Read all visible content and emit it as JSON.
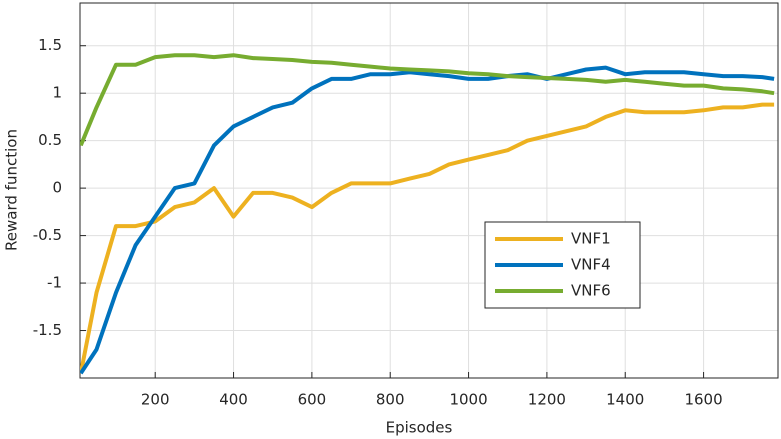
{
  "chart_data": {
    "type": "line",
    "xlabel": "Episodes",
    "ylabel": "Reward function",
    "x": [
      10,
      50,
      100,
      150,
      200,
      250,
      300,
      350,
      400,
      450,
      500,
      550,
      600,
      650,
      700,
      750,
      800,
      850,
      900,
      950,
      1000,
      1050,
      1100,
      1150,
      1200,
      1250,
      1300,
      1350,
      1400,
      1450,
      1500,
      1550,
      1600,
      1650,
      1700,
      1750,
      1780
    ],
    "series": [
      {
        "name": "VNF1",
        "color": "#edb120",
        "values": [
          -1.95,
          -1.1,
          -0.4,
          -0.4,
          -0.35,
          -0.2,
          -0.15,
          0.0,
          -0.3,
          -0.05,
          -0.05,
          -0.1,
          -0.2,
          -0.05,
          0.05,
          0.05,
          0.05,
          0.1,
          0.15,
          0.25,
          0.3,
          0.35,
          0.4,
          0.5,
          0.55,
          0.6,
          0.65,
          0.75,
          0.82,
          0.8,
          0.8,
          0.8,
          0.82,
          0.85,
          0.85,
          0.88,
          0.88
        ]
      },
      {
        "name": "VNF4",
        "color": "#0072bd",
        "values": [
          -1.95,
          -1.7,
          -1.1,
          -0.6,
          -0.3,
          0.0,
          0.05,
          0.45,
          0.65,
          0.75,
          0.85,
          0.9,
          1.05,
          1.15,
          1.15,
          1.2,
          1.2,
          1.22,
          1.2,
          1.18,
          1.15,
          1.15,
          1.18,
          1.2,
          1.15,
          1.2,
          1.25,
          1.27,
          1.2,
          1.22,
          1.22,
          1.22,
          1.2,
          1.18,
          1.18,
          1.17,
          1.15
        ]
      },
      {
        "name": "VNF6",
        "color": "#77ac30",
        "values": [
          0.45,
          0.85,
          1.3,
          1.3,
          1.38,
          1.4,
          1.4,
          1.38,
          1.4,
          1.37,
          1.36,
          1.35,
          1.33,
          1.32,
          1.3,
          1.28,
          1.26,
          1.25,
          1.24,
          1.23,
          1.21,
          1.2,
          1.18,
          1.17,
          1.16,
          1.15,
          1.14,
          1.12,
          1.14,
          1.12,
          1.1,
          1.08,
          1.08,
          1.05,
          1.04,
          1.02,
          1.0
        ]
      }
    ],
    "xlim": [
      8,
      1790
    ],
    "ylim": [
      -2,
      1.95
    ],
    "xticks": [
      200,
      400,
      600,
      800,
      1000,
      1200,
      1400,
      1600
    ],
    "yticks": [
      -1.5,
      -1,
      -0.5,
      0,
      0.5,
      1,
      1.5
    ],
    "grid": true,
    "legend": "right"
  }
}
